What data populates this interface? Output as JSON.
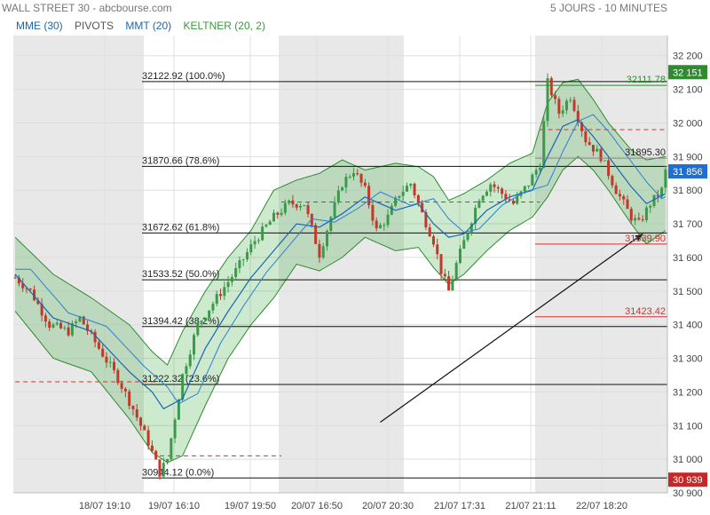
{
  "header": {
    "title": "WALL STREET 30 - abcbourse.com",
    "period": "5 JOURS - 10 MINUTES"
  },
  "legend": [
    {
      "label": "MME (30)",
      "color": "#1a66b5"
    },
    {
      "label": "PIVOTS",
      "color": "#555555"
    },
    {
      "label": "MMT (20)",
      "color": "#1a66b5"
    },
    {
      "label": "KELTNER (20, 2)",
      "color": "#3a9a3a"
    }
  ],
  "colors": {
    "up": "#3b9a4a",
    "down": "#c0392b",
    "ma": "#1a66b5",
    "band": "#4caf50",
    "session": "#e8e8e8"
  },
  "chart_data": {
    "type": "candlestick",
    "ylim": [
      30900,
      32260
    ],
    "y_ticks": [
      30900,
      31000,
      31100,
      31200,
      31300,
      31400,
      31500,
      31600,
      31700,
      31800,
      31900,
      32000,
      32100,
      32200
    ],
    "y_tick_labels": [
      "30 900",
      "31 000",
      "31 100",
      "31 200",
      "31 300",
      "31 400",
      "31 500",
      "31 600",
      "31 700",
      "31 800",
      "31 900",
      "32 000",
      "32 100",
      "32 200"
    ],
    "x_tick_labels": [
      "18/07 19:10",
      "19/07 16:10",
      "19/07 19:50",
      "20/07 16:50",
      "20/07 20:30",
      "21/07 17:31",
      "21/07 21:11",
      "22/07 18:20"
    ],
    "fibonacci": [
      {
        "label": "32122.92 (100.0%)",
        "value": 32122.92
      },
      {
        "label": "31870.66 (78.6%)",
        "value": 31870.66
      },
      {
        "label": "31672.62 (61.8%)",
        "value": 31672.62
      },
      {
        "label": "31533.52 (50.0%)",
        "value": 31533.52
      },
      {
        "label": "31394.42 (38.2%)",
        "value": 31394.42
      },
      {
        "label": "31222.32 (23.6%)",
        "value": 31222.32
      },
      {
        "label": "30944.12 (0.0%)",
        "value": 30944.12
      }
    ],
    "annotations": [
      {
        "text": "32111.78",
        "value": 32111.78,
        "color": "#2e8b2e"
      },
      {
        "text": "31895.30",
        "value": 31895.3,
        "color": "#222222"
      },
      {
        "text": "31639.90",
        "value": 31639.9,
        "color": "#d32f2f"
      },
      {
        "text": "31423.42",
        "value": 31423.42,
        "color": "#d32f2f"
      }
    ],
    "price_tags": [
      {
        "text": "32 151",
        "value": 32151,
        "color": "#2e8b2e"
      },
      {
        "text": "31 856",
        "value": 31856,
        "color": "#1e6fd0"
      },
      {
        "text": "30 939",
        "value": 30939,
        "color": "#c62828"
      }
    ],
    "close_path": [
      [
        0,
        31540
      ],
      [
        4,
        31500
      ],
      [
        9,
        31400
      ],
      [
        14,
        31380
      ],
      [
        17,
        31420
      ],
      [
        22,
        31330
      ],
      [
        27,
        31240
      ],
      [
        31,
        31150
      ],
      [
        35,
        31050
      ],
      [
        38,
        30960
      ],
      [
        40,
        31000
      ],
      [
        44,
        31250
      ],
      [
        48,
        31400
      ],
      [
        53,
        31480
      ],
      [
        58,
        31560
      ],
      [
        63,
        31650
      ],
      [
        68,
        31720
      ],
      [
        72,
        31760
      ],
      [
        76,
        31760
      ],
      [
        80,
        31610
      ],
      [
        83,
        31720
      ],
      [
        86,
        31820
      ],
      [
        89,
        31860
      ],
      [
        92,
        31800
      ],
      [
        95,
        31680
      ],
      [
        98,
        31720
      ],
      [
        101,
        31790
      ],
      [
        104,
        31820
      ],
      [
        107,
        31730
      ],
      [
        110,
        31650
      ],
      [
        112,
        31560
      ],
      [
        114,
        31500
      ],
      [
        116,
        31580
      ],
      [
        119,
        31680
      ],
      [
        122,
        31780
      ],
      [
        125,
        31820
      ],
      [
        128,
        31790
      ],
      [
        131,
        31760
      ],
      [
        135,
        31820
      ],
      [
        138,
        31880
      ],
      [
        140,
        32120
      ],
      [
        143,
        32030
      ],
      [
        146,
        32080
      ],
      [
        150,
        31950
      ],
      [
        154,
        31900
      ],
      [
        158,
        31800
      ],
      [
        162,
        31720
      ],
      [
        164,
        31700
      ],
      [
        167,
        31760
      ],
      [
        170,
        31800
      ],
      [
        171,
        31856
      ]
    ],
    "moving_average": [
      [
        0,
        31550
      ],
      [
        10,
        31420
      ],
      [
        20,
        31380
      ],
      [
        30,
        31260
      ],
      [
        36,
        31200
      ],
      [
        39,
        31150
      ],
      [
        44,
        31180
      ],
      [
        50,
        31330
      ],
      [
        56,
        31440
      ],
      [
        62,
        31540
      ],
      [
        68,
        31620
      ],
      [
        74,
        31700
      ],
      [
        80,
        31690
      ],
      [
        86,
        31730
      ],
      [
        92,
        31780
      ],
      [
        100,
        31740
      ],
      [
        106,
        31760
      ],
      [
        110,
        31700
      ],
      [
        114,
        31660
      ],
      [
        118,
        31670
      ],
      [
        124,
        31740
      ],
      [
        130,
        31780
      ],
      [
        136,
        31800
      ],
      [
        140,
        31900
      ],
      [
        144,
        31990
      ],
      [
        148,
        32010
      ],
      [
        152,
        31960
      ],
      [
        156,
        31900
      ],
      [
        162,
        31810
      ],
      [
        166,
        31760
      ],
      [
        171,
        31790
      ]
    ],
    "keltner_upper": [
      [
        0,
        31660
      ],
      [
        10,
        31550
      ],
      [
        20,
        31480
      ],
      [
        30,
        31400
      ],
      [
        36,
        31320
      ],
      [
        40,
        31280
      ],
      [
        44,
        31380
      ],
      [
        50,
        31500
      ],
      [
        56,
        31600
      ],
      [
        62,
        31680
      ],
      [
        68,
        31800
      ],
      [
        74,
        31830
      ],
      [
        80,
        31850
      ],
      [
        86,
        31890
      ],
      [
        92,
        31860
      ],
      [
        100,
        31880
      ],
      [
        106,
        31870
      ],
      [
        110,
        31840
      ],
      [
        114,
        31770
      ],
      [
        118,
        31790
      ],
      [
        124,
        31830
      ],
      [
        130,
        31880
      ],
      [
        136,
        31910
      ],
      [
        140,
        32060
      ],
      [
        144,
        32120
      ],
      [
        148,
        32130
      ],
      [
        152,
        32070
      ],
      [
        156,
        32000
      ],
      [
        162,
        31920
      ],
      [
        166,
        31890
      ],
      [
        171,
        31900
      ]
    ],
    "keltner_lower": [
      [
        0,
        31440
      ],
      [
        10,
        31300
      ],
      [
        20,
        31260
      ],
      [
        30,
        31120
      ],
      [
        36,
        31020
      ],
      [
        40,
        30990
      ],
      [
        44,
        31010
      ],
      [
        50,
        31160
      ],
      [
        56,
        31300
      ],
      [
        62,
        31400
      ],
      [
        68,
        31480
      ],
      [
        74,
        31580
      ],
      [
        80,
        31560
      ],
      [
        86,
        31600
      ],
      [
        92,
        31660
      ],
      [
        100,
        31620
      ],
      [
        106,
        31630
      ],
      [
        110,
        31570
      ],
      [
        114,
        31520
      ],
      [
        118,
        31550
      ],
      [
        124,
        31620
      ],
      [
        130,
        31680
      ],
      [
        136,
        31720
      ],
      [
        140,
        31780
      ],
      [
        144,
        31860
      ],
      [
        148,
        31900
      ],
      [
        152,
        31860
      ],
      [
        156,
        31800
      ],
      [
        162,
        31700
      ],
      [
        166,
        31640
      ],
      [
        171,
        31680
      ]
    ],
    "red_levels": [
      {
        "value": 31230,
        "from": 0,
        "to": 38
      },
      {
        "value": 31010,
        "from": 38,
        "to": 70
      },
      {
        "value": 31765,
        "from": 70,
        "to": 138
      },
      {
        "value": 31980,
        "from": 138,
        "to": 171
      }
    ],
    "arrow": {
      "from": [
        96,
        31110
      ],
      "to": [
        165,
        31670
      ]
    }
  }
}
